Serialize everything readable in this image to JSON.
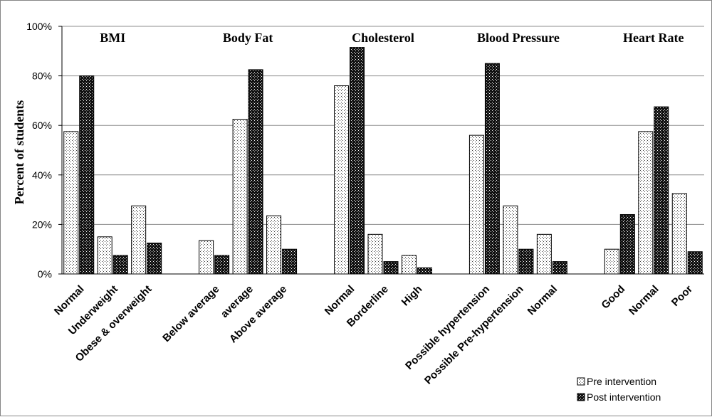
{
  "chart_data": {
    "type": "bar",
    "ylabel": "Percent of students",
    "ylim": [
      0,
      100
    ],
    "yticks": [
      "0%",
      "20%",
      "40%",
      "60%",
      "80%",
      "100%"
    ],
    "grid": true,
    "legend_position": "bottom-right",
    "series_names": [
      "Pre intervention",
      "Post intervention"
    ],
    "colors": {
      "pre_fill": "#ffffff",
      "post_fill": "#1a1a1a",
      "dot_light": "#3a3a3a",
      "dot_dark": "#ffffff",
      "grid": "#8c8c8c"
    },
    "groups": [
      {
        "title": "BMI",
        "categories": [
          "Normal",
          "Underweight",
          "Obese & overweight"
        ],
        "pre": [
          57.5,
          15,
          27.5
        ],
        "post": [
          80,
          7.5,
          12.5
        ]
      },
      {
        "title": "Body Fat",
        "categories": [
          "Below average",
          "average",
          "Above average"
        ],
        "pre": [
          13.5,
          62.5,
          23.5
        ],
        "post": [
          7.5,
          82.5,
          10
        ]
      },
      {
        "title": "Cholesterol",
        "categories": [
          "Normal",
          "Borderline",
          "High"
        ],
        "pre": [
          76,
          16,
          7.5
        ],
        "post": [
          91.5,
          5,
          2.5
        ]
      },
      {
        "title": "Blood Pressure",
        "categories": [
          "Possible hypertension",
          "Possible Pre-hypertension",
          "Normal"
        ],
        "pre": [
          56,
          27.5,
          16
        ],
        "post": [
          85,
          10,
          5
        ]
      },
      {
        "title": "Heart  Rate",
        "categories": [
          "Good",
          "Normal",
          "Poor"
        ],
        "pre": [
          10,
          57.5,
          32.5
        ],
        "post": [
          24,
          67.5,
          9
        ]
      }
    ]
  }
}
